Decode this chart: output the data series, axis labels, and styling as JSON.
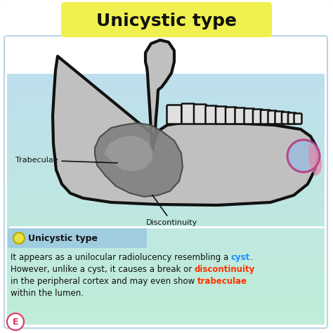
{
  "title": "Unicystic type",
  "title_bg": "#f0f050",
  "bg_color": "#ffffff",
  "panel_bg_top": "#c5e0f0",
  "panel_bg_bottom": "#c8edd8",
  "jaw_fill": "#c0c0c0",
  "jaw_stroke": "#111111",
  "lesion_fill": "#808080",
  "lesion_stroke": "#555555",
  "teeth_fill": "#e0e0e0",
  "label_trabeculae": "Trabeculae",
  "label_discontinuity": "Discontinuity",
  "legend_title": "Unicystic type",
  "legend_bg": "#a8d8e8",
  "dot_color": "#e8e040",
  "dot_edge": "#b8a800",
  "disc_blue": "#99bbdd",
  "disc_pink": "#e888aa",
  "body_line1_pre": "It appears as a unilocular radiolucency resembling a ",
  "body_line1_word": "cyst",
  "body_line1_word_color": "#1a8fff",
  "body_line1_post": ".",
  "body_line2_pre": "However, unlike a cyst, it causes a break or ",
  "body_line2_word": "discontinuity",
  "body_line2_word_color": "#ff3300",
  "body_line3_pre": "in the peripheral cortex and may even show ",
  "body_line3_word": "trabeculae",
  "body_line3_word_color": "#ff3300",
  "body_line4": "within the lumen.",
  "text_color": "#111111",
  "border_color": "#999999"
}
